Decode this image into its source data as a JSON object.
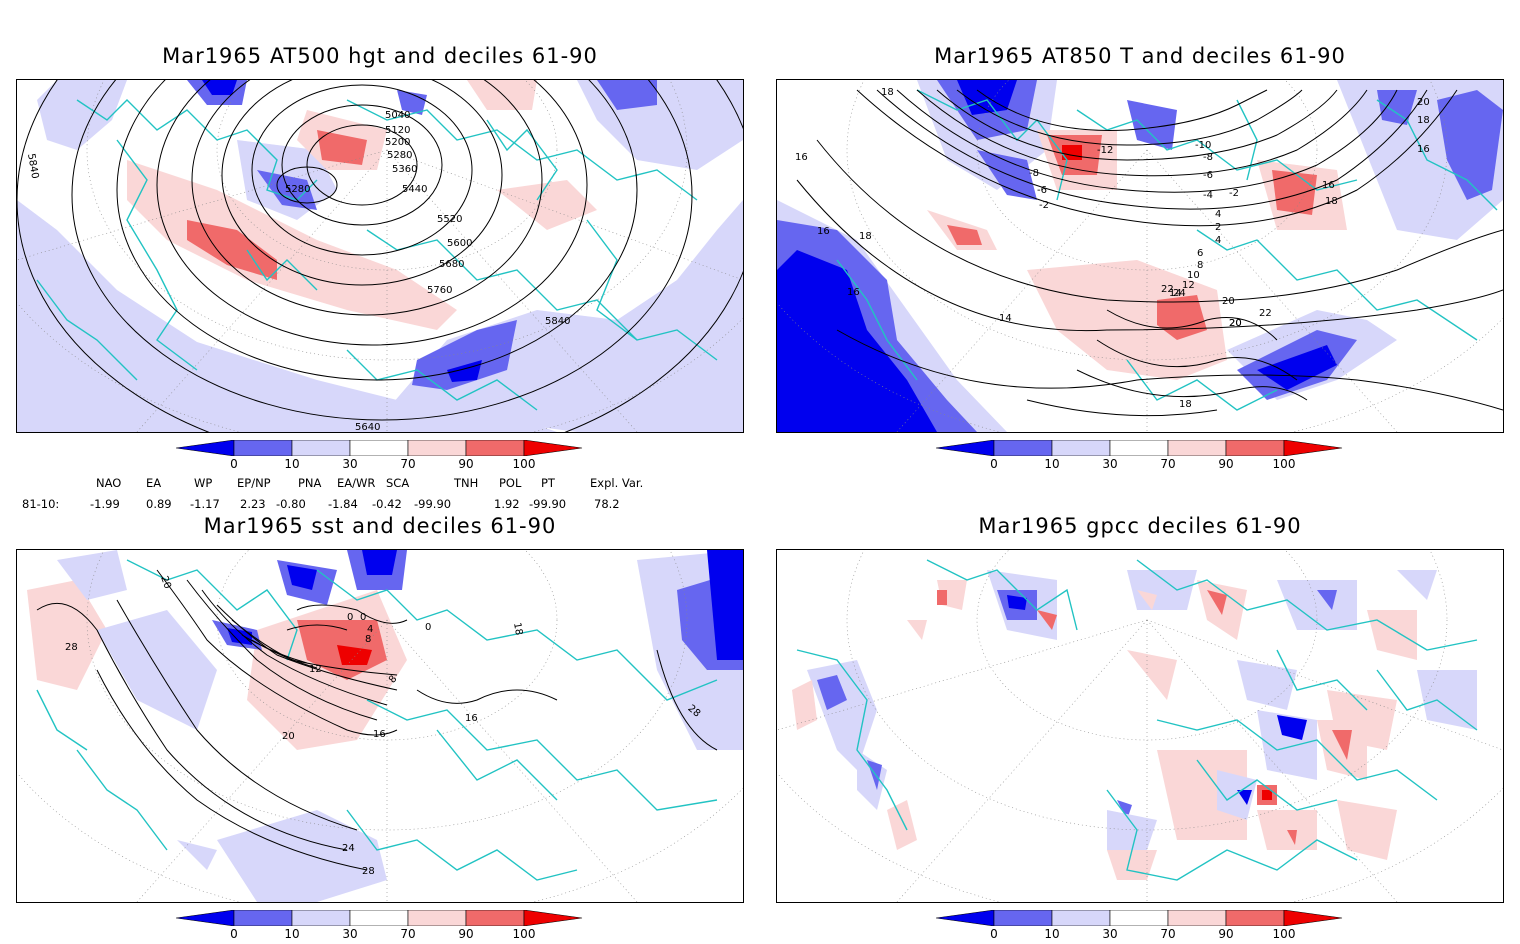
{
  "palette": {
    "blue_dark": "#0000ee",
    "blue_mid": "#6666f0",
    "blue_light": "#d7d7fa",
    "red_light": "#fad7d7",
    "red_mid": "#f06a6a",
    "red_dark": "#ee0000",
    "coast": "#22c3c3",
    "contour": "#000000"
  },
  "panels": [
    {
      "id": "p1",
      "title": "Mar1965 AT500 hgt and deciles 61-90",
      "contour_labels": [
        "5040",
        "5120",
        "5200",
        "5280",
        "5360",
        "5280",
        "5440",
        "5520",
        "5600",
        "5680",
        "5760",
        "5840",
        "5840",
        "5640"
      ]
    },
    {
      "id": "p2",
      "title": "Mar1965 AT850 T and deciles 61-90",
      "contour_labels": [
        "18",
        "16",
        "20",
        "18",
        "16",
        "-12",
        "-10",
        "-8",
        "-8",
        "-6",
        "-6",
        "-4",
        "-2",
        "-2",
        "4",
        "2",
        "4",
        "6",
        "8",
        "10",
        "12",
        "14",
        "16",
        "18",
        "20",
        "20",
        "22",
        "24",
        "22",
        "20",
        "18",
        "14",
        "16",
        "18",
        "16"
      ]
    },
    {
      "id": "p3",
      "title": "Mar1965 sst and deciles 61-90",
      "contour_labels": [
        "20",
        "28",
        "0",
        "0",
        "4",
        "8",
        "12",
        "16",
        "16",
        "20",
        "24",
        "28",
        "28",
        "8",
        "0",
        "18"
      ]
    },
    {
      "id": "p4",
      "title": "Mar1965 gpcc deciles 61-90",
      "contour_labels": []
    }
  ],
  "colorbar": {
    "labels": [
      "0",
      "10",
      "30",
      "70",
      "90",
      "100"
    ]
  },
  "indices": {
    "headers": [
      "NAO",
      "EA",
      "WP",
      "EP/NP",
      "PNA",
      "EA/WR",
      "SCA",
      "TNH",
      "POL",
      "PT",
      "Expl. Var."
    ],
    "row_label": "81-10:",
    "values": [
      "-1.99",
      "0.89",
      "-1.17",
      "2.23",
      "-0.80",
      "-1.84",
      "-0.42",
      "-99.90",
      "1.92",
      "-99.90",
      "78.2"
    ]
  }
}
